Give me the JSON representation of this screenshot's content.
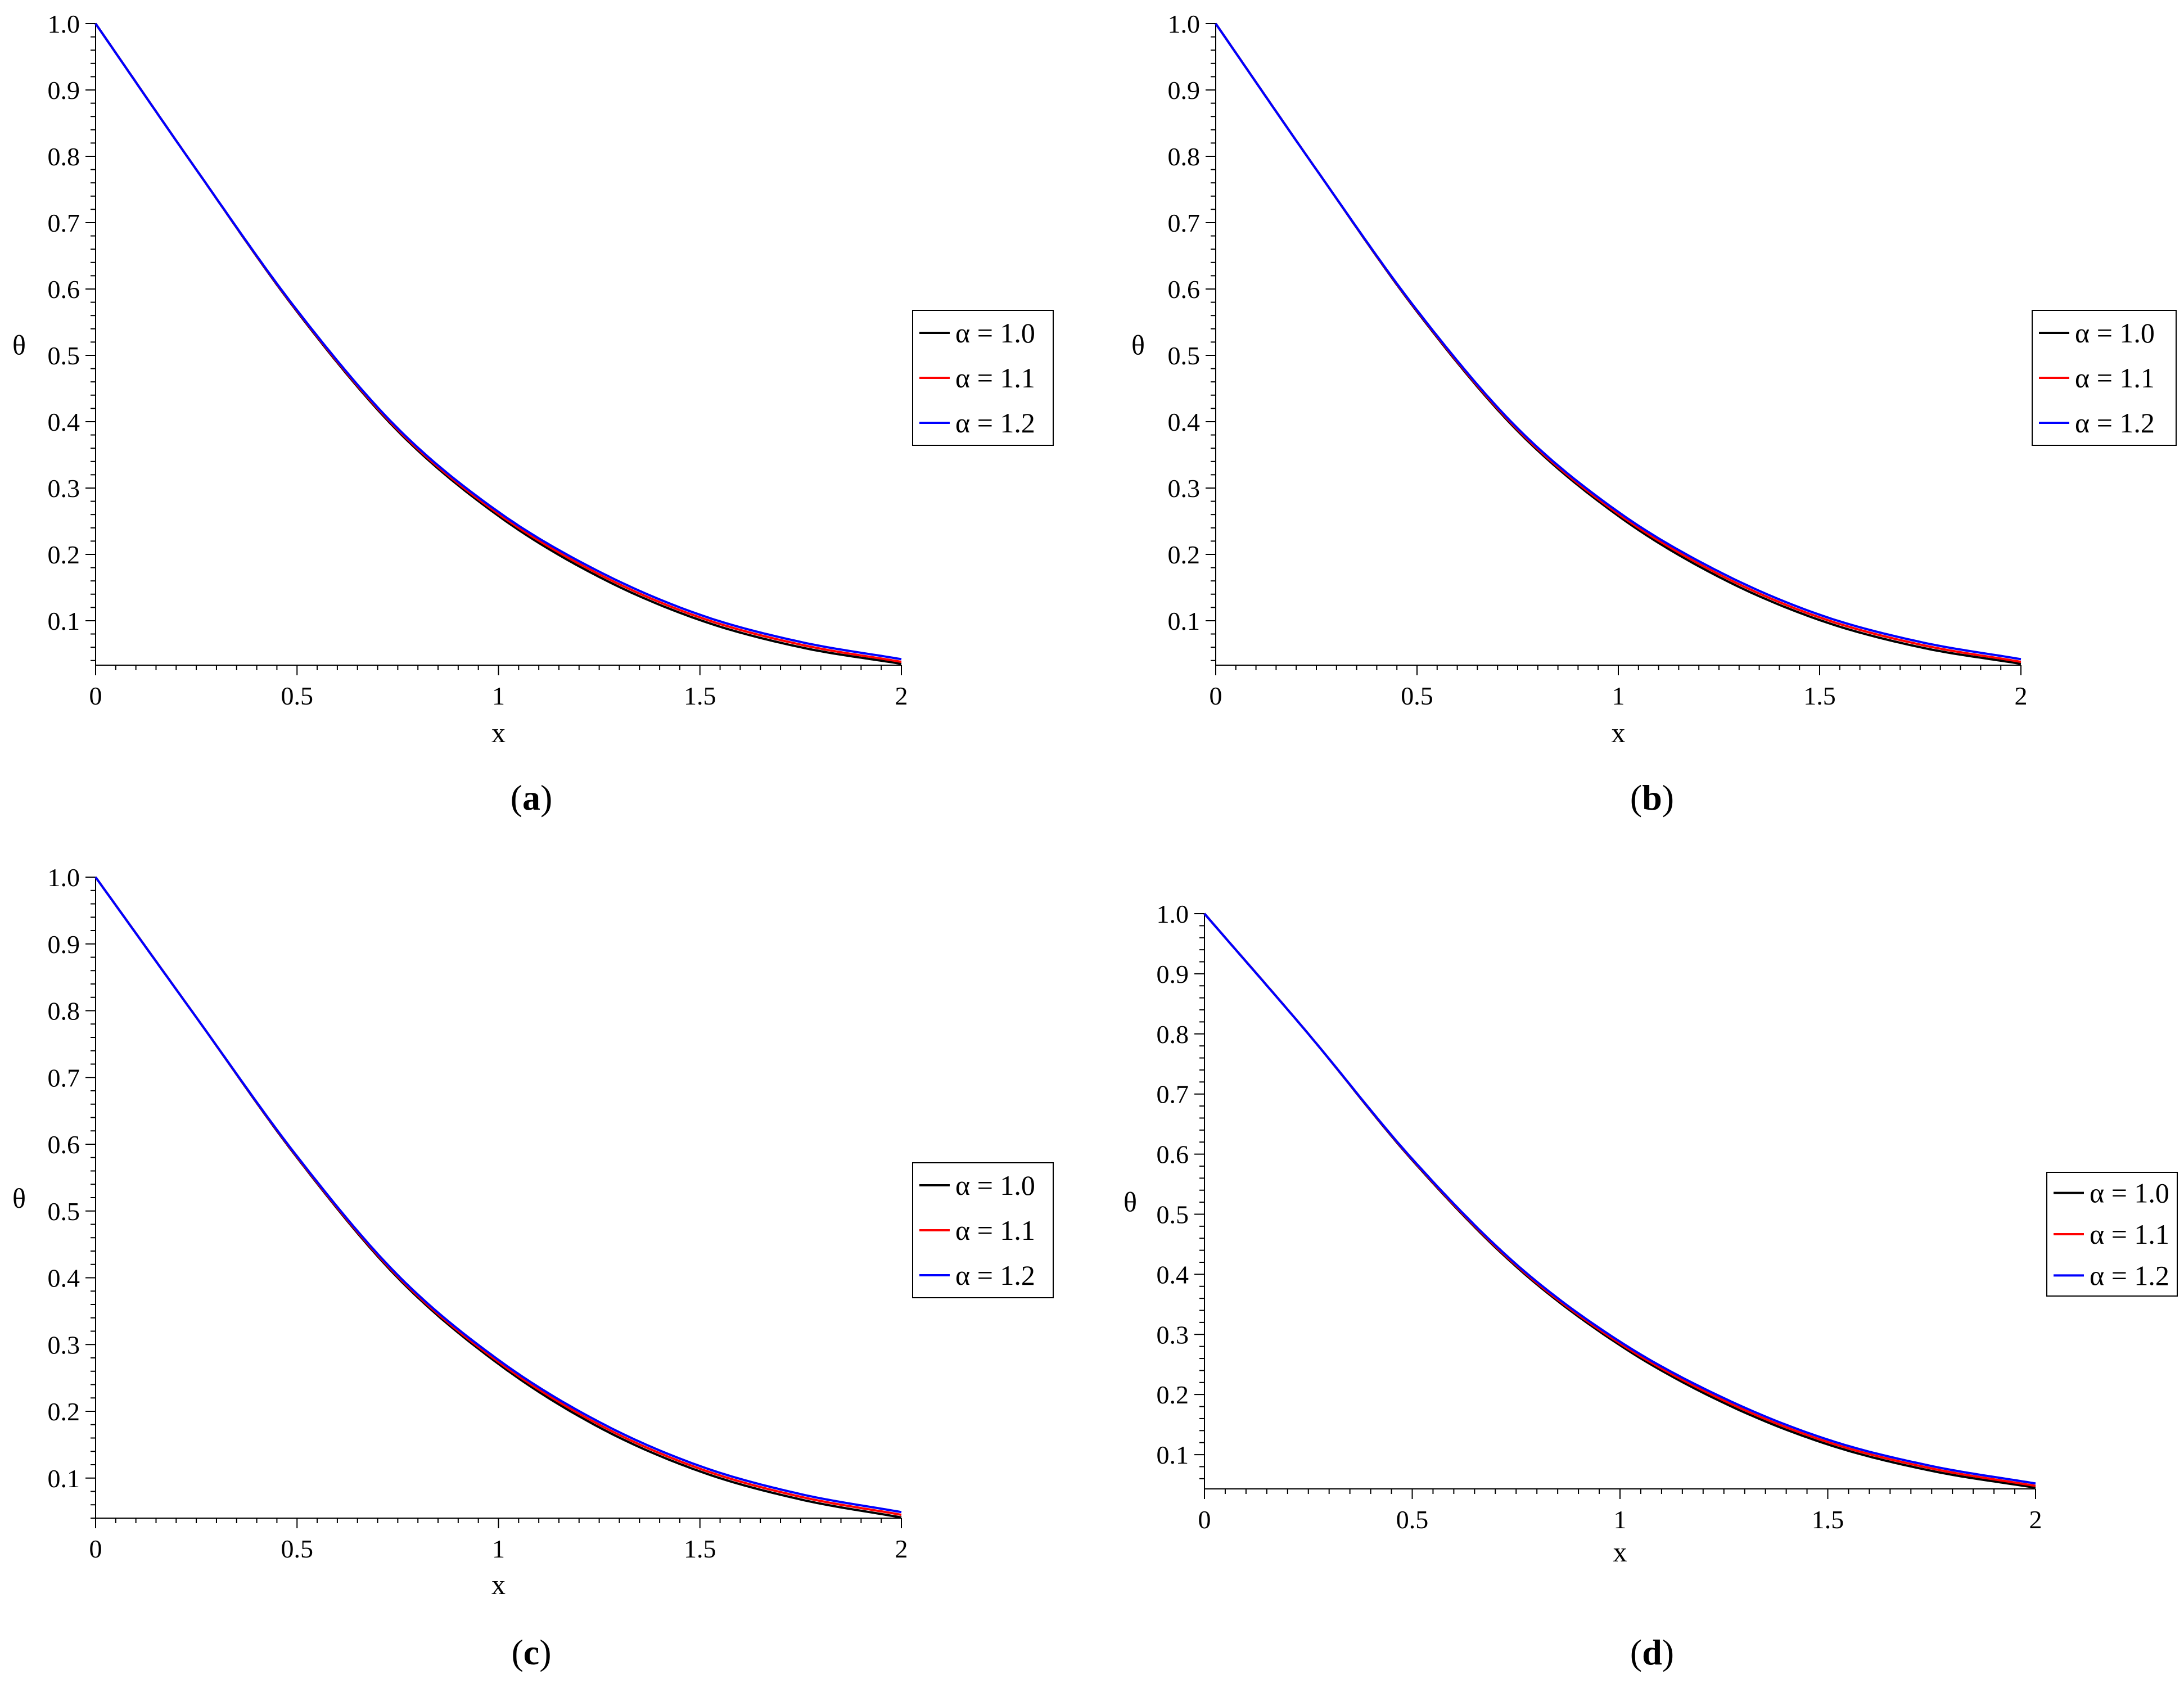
{
  "chart_data": [
    {
      "type": "line",
      "panel_label": "a",
      "xlabel": "x",
      "ylabel": "θ",
      "xlim": [
        0,
        2
      ],
      "ylim": [
        0.033,
        1.0
      ],
      "xticks": [
        "0",
        "0.5",
        "1",
        "1.5",
        "2"
      ],
      "yticks": [
        "0.1",
        "0.2",
        "0.3",
        "0.4",
        "0.5",
        "0.6",
        "0.7",
        "0.8",
        "0.9",
        "1.0"
      ],
      "legend_position": "right",
      "x": [
        0,
        0.25,
        0.5,
        0.75,
        1.0,
        1.25,
        1.5,
        1.75,
        2.0
      ],
      "series": [
        {
          "name": "α = 1.0",
          "color": "#000000",
          "values": [
            1.0,
            0.78,
            0.566,
            0.386,
            0.258,
            0.166,
            0.101,
            0.06,
            0.035
          ]
        },
        {
          "name": "α = 1.1",
          "color": "#ff0000",
          "values": [
            1.0,
            0.78,
            0.567,
            0.388,
            0.261,
            0.17,
            0.105,
            0.064,
            0.038
          ]
        },
        {
          "name": "α = 1.2",
          "color": "#0000ff",
          "values": [
            1.0,
            0.78,
            0.568,
            0.39,
            0.264,
            0.174,
            0.109,
            0.068,
            0.042
          ]
        }
      ]
    },
    {
      "type": "line",
      "panel_label": "b",
      "xlabel": "x",
      "ylabel": "θ",
      "xlim": [
        0,
        2
      ],
      "ylim": [
        0.033,
        1.0
      ],
      "xticks": [
        "0",
        "0.5",
        "1",
        "1.5",
        "2"
      ],
      "yticks": [
        "0.1",
        "0.2",
        "0.3",
        "0.4",
        "0.5",
        "0.6",
        "0.7",
        "0.8",
        "0.9",
        "1.0"
      ],
      "legend_position": "right",
      "x": [
        0,
        0.25,
        0.5,
        0.75,
        1.0,
        1.25,
        1.5,
        1.75,
        2.0
      ],
      "series": [
        {
          "name": "α = 1.0",
          "color": "#000000",
          "values": [
            1.0,
            0.78,
            0.566,
            0.386,
            0.258,
            0.166,
            0.101,
            0.06,
            0.035
          ]
        },
        {
          "name": "α = 1.1",
          "color": "#ff0000",
          "values": [
            1.0,
            0.78,
            0.567,
            0.388,
            0.261,
            0.17,
            0.105,
            0.064,
            0.038
          ]
        },
        {
          "name": "α = 1.2",
          "color": "#0000ff",
          "values": [
            1.0,
            0.78,
            0.568,
            0.39,
            0.264,
            0.174,
            0.109,
            0.068,
            0.042
          ]
        }
      ]
    },
    {
      "type": "line",
      "panel_label": "c",
      "xlabel": "x",
      "ylabel": "θ",
      "xlim": [
        0,
        2
      ],
      "ylim": [
        0.04,
        1.0
      ],
      "xticks": [
        "0",
        "0.5",
        "1",
        "1.5",
        "2"
      ],
      "yticks": [
        "0.1",
        "0.2",
        "0.3",
        "0.4",
        "0.5",
        "0.6",
        "0.7",
        "0.8",
        "0.9",
        "1.0"
      ],
      "legend_position": "right",
      "x": [
        0,
        0.25,
        0.5,
        0.75,
        1.0,
        1.25,
        1.5,
        1.75,
        2.0
      ],
      "series": [
        {
          "name": "α = 1.0",
          "color": "#000000",
          "values": [
            1.0,
            0.79,
            0.58,
            0.4,
            0.271,
            0.176,
            0.11,
            0.068,
            0.041
          ]
        },
        {
          "name": "α = 1.1",
          "color": "#ff0000",
          "values": [
            1.0,
            0.79,
            0.581,
            0.402,
            0.274,
            0.18,
            0.114,
            0.072,
            0.045
          ]
        },
        {
          "name": "α = 1.2",
          "color": "#0000ff",
          "values": [
            1.0,
            0.79,
            0.582,
            0.404,
            0.277,
            0.184,
            0.118,
            0.076,
            0.049
          ]
        }
      ]
    },
    {
      "type": "line",
      "panel_label": "d",
      "xlabel": "x",
      "ylabel": "θ",
      "xlim": [
        0,
        2
      ],
      "ylim": [
        0.043,
        1.0
      ],
      "xticks": [
        "0",
        "0.5",
        "1",
        "1.5",
        "2"
      ],
      "yticks": [
        "0.1",
        "0.2",
        "0.3",
        "0.4",
        "0.5",
        "0.6",
        "0.7",
        "0.8",
        "0.9",
        "1.0"
      ],
      "legend_position": "right",
      "x": [
        0,
        0.25,
        0.5,
        0.75,
        1.0,
        1.25,
        1.5,
        1.75,
        2.0
      ],
      "series": [
        {
          "name": "α = 1.0",
          "color": "#000000",
          "values": [
            1.0,
            0.8,
            0.59,
            0.413,
            0.282,
            0.186,
            0.117,
            0.073,
            0.045
          ]
        },
        {
          "name": "α = 1.1",
          "color": "#ff0000",
          "values": [
            1.0,
            0.8,
            0.591,
            0.415,
            0.285,
            0.19,
            0.121,
            0.077,
            0.048
          ]
        },
        {
          "name": "α = 1.2",
          "color": "#0000ff",
          "values": [
            1.0,
            0.8,
            0.592,
            0.417,
            0.288,
            0.194,
            0.125,
            0.081,
            0.052
          ]
        }
      ]
    }
  ]
}
